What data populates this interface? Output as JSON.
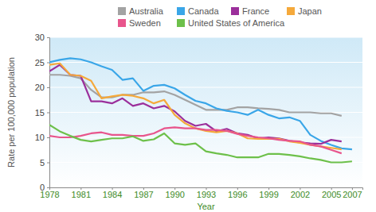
{
  "chart_data": {
    "type": "line",
    "x_label": "Year",
    "y_label": "Rate per 100,000 population",
    "x": [
      1978,
      1979,
      1980,
      1981,
      1982,
      1983,
      1984,
      1985,
      1986,
      1987,
      1988,
      1989,
      1990,
      1991,
      1992,
      1993,
      1994,
      1995,
      1996,
      1997,
      1998,
      1999,
      2000,
      2001,
      2002,
      2003,
      2004,
      2005,
      2006,
      2007
    ],
    "series": [
      {
        "name": "Australia",
        "color": "#a3a3a3",
        "values": [
          22.5,
          22.5,
          22.3,
          21.8,
          19.5,
          18,
          18,
          18.5,
          18.5,
          19,
          19,
          19.2,
          18.5,
          17.5,
          16.5,
          15.5,
          15.5,
          15.5,
          16,
          16,
          15.8,
          15.7,
          15.5,
          15,
          15,
          15,
          14.8,
          14.8,
          14.3,
          null
        ]
      },
      {
        "name": "Canada",
        "color": "#3aa6e8",
        "values": [
          25,
          25.5,
          25.8,
          25.6,
          25,
          24.2,
          23.5,
          21.5,
          21.8,
          19.3,
          20.3,
          20.5,
          19.8,
          18.5,
          17.3,
          16.8,
          15.8,
          15.3,
          15,
          14.5,
          15.5,
          14.5,
          13.8,
          14,
          13.3,
          10.5,
          9.3,
          8.5,
          7.8,
          7.6
        ]
      },
      {
        "name": "France",
        "color": "#9b2f9b",
        "values": [
          23.2,
          24.5,
          22.5,
          22.3,
          17.2,
          17.2,
          16.8,
          17.8,
          16.3,
          16.8,
          15.8,
          16.3,
          15.2,
          13.3,
          12.3,
          12.7,
          11.2,
          11.7,
          10.8,
          10.5,
          9.8,
          10,
          9.8,
          9.3,
          9,
          8.8,
          8.7,
          9.5,
          9.2,
          null
        ]
      },
      {
        "name": "Japan",
        "color": "#f5a93b",
        "values": [
          24.5,
          24.8,
          22.5,
          22.3,
          21.3,
          17.8,
          18.2,
          18.5,
          18.3,
          17.8,
          16.8,
          17.5,
          14.5,
          12.8,
          11.8,
          11.3,
          11,
          11.3,
          10.8,
          9.8,
          9.7,
          9.7,
          9.7,
          9.2,
          8.9,
          8.5,
          8.2,
          7.9,
          7.6,
          null
        ]
      },
      {
        "name": "Sweden",
        "color": "#e8558c",
        "values": [
          10.3,
          10,
          10,
          10.3,
          10.8,
          11,
          10.5,
          10.5,
          10.3,
          10.3,
          10.8,
          11.8,
          12,
          11.8,
          11.8,
          11.5,
          11.5,
          11.3,
          10.7,
          10.3,
          10,
          9.8,
          9.5,
          9.3,
          9.2,
          8.5,
          8.2,
          7.5,
          6.8,
          null
        ]
      },
      {
        "name": "United States of America",
        "color": "#6dc04a",
        "values": [
          12.5,
          11.2,
          10.3,
          9.5,
          9.2,
          9.5,
          9.8,
          9.8,
          10.2,
          9.3,
          9.6,
          10.8,
          8.8,
          8.5,
          8.8,
          7.2,
          6.8,
          6.5,
          6,
          6,
          6,
          6.7,
          6.7,
          6.5,
          6.2,
          5.8,
          5.5,
          5,
          5,
          5.2
        ]
      }
    ],
    "xlim": [
      1978,
      2008
    ],
    "xticks": [
      1978,
      1981,
      1984,
      1987,
      1990,
      1993,
      1996,
      1999,
      2002,
      2005,
      2007
    ],
    "ylim": [
      0,
      30
    ],
    "yticks": [
      0,
      5,
      10,
      15,
      20,
      25,
      30
    ],
    "grid": true,
    "legend": "top"
  }
}
